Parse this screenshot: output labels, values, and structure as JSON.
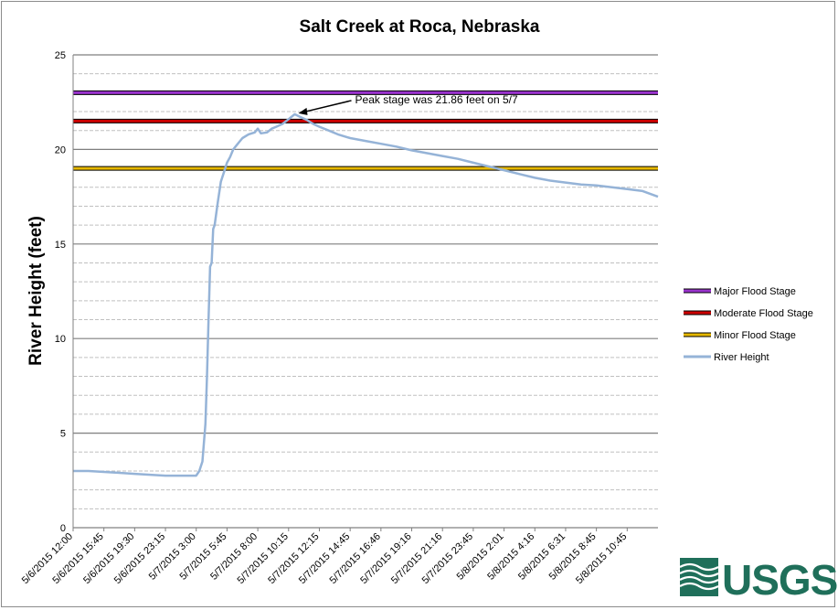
{
  "chart_data": {
    "type": "line",
    "title": "Salt Creek at Roca, Nebraska",
    "xlabel": "",
    "ylabel": "River Height (feet)",
    "ylim": [
      0,
      25
    ],
    "yticks": [
      0,
      5,
      10,
      15,
      20,
      25
    ],
    "grid": true,
    "legend_placement": "right",
    "x_tick_labels": [
      "5/6/2015 12:00",
      "5/6/2015 15:45",
      "5/6/2015 19:30",
      "5/6/2015 23:15",
      "5/7/2015 3:00",
      "5/7/2015 5:45",
      "5/7/2015 8:00",
      "5/7/2015 10:15",
      "5/7/2015 12:15",
      "5/7/2015 14:45",
      "5/7/2015 16:46",
      "5/7/2015 19:16",
      "5/7/2015 21:16",
      "5/7/2015 23:45",
      "5/8/2015 2:01",
      "5/8/2015 4:16",
      "5/8/2015 6:31",
      "5/8/2015 8:45",
      "5/8/2015 10:45"
    ],
    "x_range": [
      0,
      19
    ],
    "thresholds": [
      {
        "name": "Major Flood Stage",
        "value": 23,
        "color": "#9933cc"
      },
      {
        "name": "Moderate Flood Stage",
        "value": 21.5,
        "color": "#cc0000"
      },
      {
        "name": "Minor Flood Stage",
        "value": 19,
        "color": "#e6b800"
      }
    ],
    "series": [
      {
        "name": "River Height",
        "color": "#95b3d7",
        "x": [
          0,
          0.5,
          1,
          1.5,
          2,
          2.5,
          3,
          3.5,
          4,
          4.1,
          4.2,
          4.3,
          4.35,
          4.4,
          4.45,
          4.5,
          4.55,
          4.6,
          4.7,
          4.8,
          4.9,
          5.0,
          5.1,
          5.2,
          5.3,
          5.4,
          5.5,
          5.7,
          5.9,
          6.0,
          6.1,
          6.3,
          6.45,
          6.6,
          6.8,
          7.0,
          7.2,
          7.4,
          7.6,
          7.8,
          8.0,
          8.3,
          8.6,
          9.0,
          9.5,
          10.0,
          10.5,
          11.0,
          11.5,
          12.0,
          12.5,
          13.0,
          13.5,
          14.0,
          14.5,
          15.0,
          15.5,
          16.0,
          16.5,
          17.0,
          17.5,
          18.0,
          18.5,
          19.0
        ],
        "y": [
          3.0,
          3.0,
          2.95,
          2.9,
          2.85,
          2.8,
          2.75,
          2.75,
          2.75,
          3.0,
          3.5,
          5.5,
          8.0,
          11.0,
          13.8,
          14.0,
          15.8,
          16.0,
          17.2,
          18.3,
          18.8,
          19.3,
          19.6,
          20.0,
          20.2,
          20.4,
          20.6,
          20.8,
          20.9,
          21.1,
          20.85,
          20.9,
          21.1,
          21.2,
          21.35,
          21.6,
          21.86,
          21.7,
          21.55,
          21.35,
          21.2,
          21.0,
          20.8,
          20.6,
          20.45,
          20.3,
          20.15,
          19.95,
          19.8,
          19.65,
          19.5,
          19.3,
          19.1,
          18.9,
          18.7,
          18.5,
          18.35,
          18.25,
          18.15,
          18.1,
          18.0,
          17.9,
          17.8,
          17.5
        ]
      }
    ],
    "annotations": [
      {
        "text": "Peak stage was 21.86 feet on 5/7",
        "x": 7.2,
        "y": 21.86
      }
    ]
  },
  "logo": {
    "text": "USGS",
    "name": "usgs-logo"
  }
}
